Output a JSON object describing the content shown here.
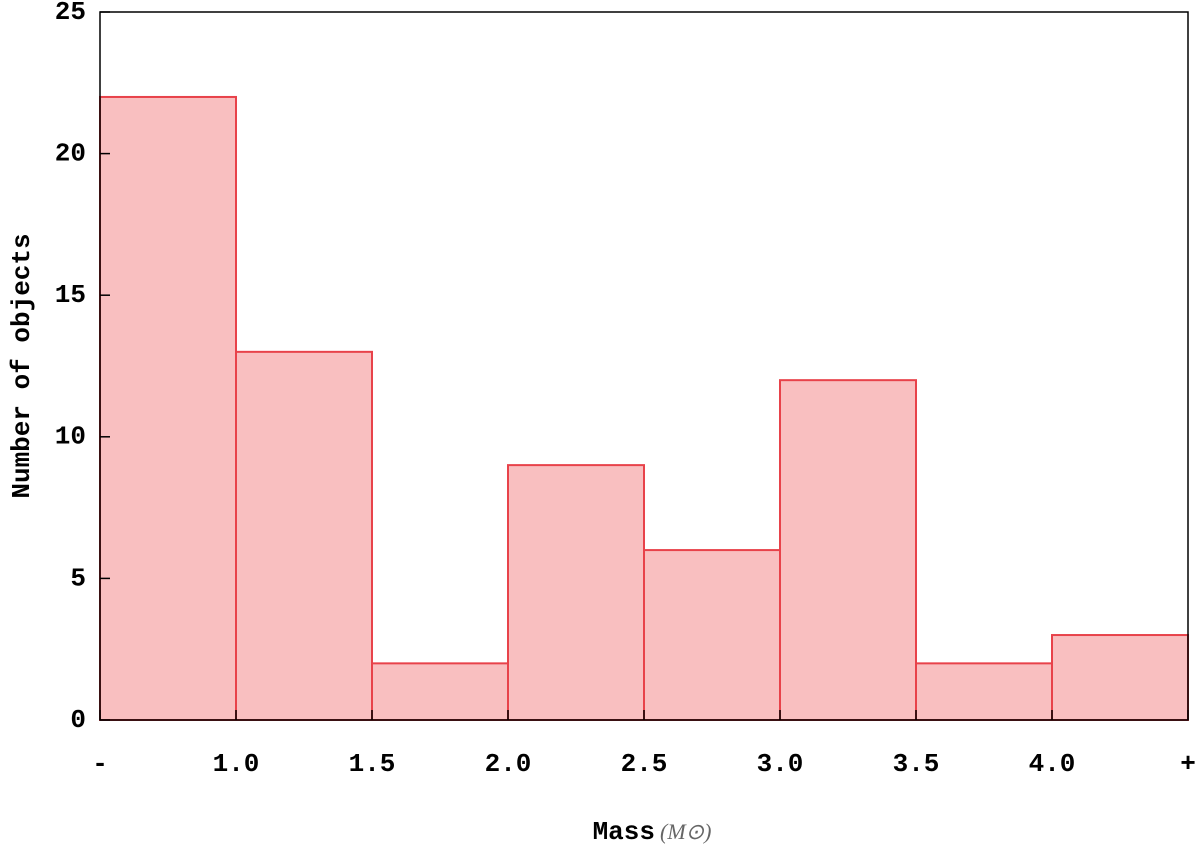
{
  "chart_data": {
    "type": "histogram",
    "bins": [
      "-",
      "1.0",
      "1.5",
      "2.0",
      "2.5",
      "3.0",
      "3.5",
      "4.0",
      "+"
    ],
    "counts": [
      22,
      13,
      2,
      9,
      6,
      12,
      2,
      3
    ],
    "color": "#f9bfc0",
    "edge_color": "#e8424a",
    "ylim": [
      0,
      25
    ],
    "yticks": [
      0,
      5,
      10,
      15,
      20,
      25
    ],
    "x_label": "Mass",
    "x_unit": "(M⊙)",
    "y_label": "Number of objects"
  }
}
